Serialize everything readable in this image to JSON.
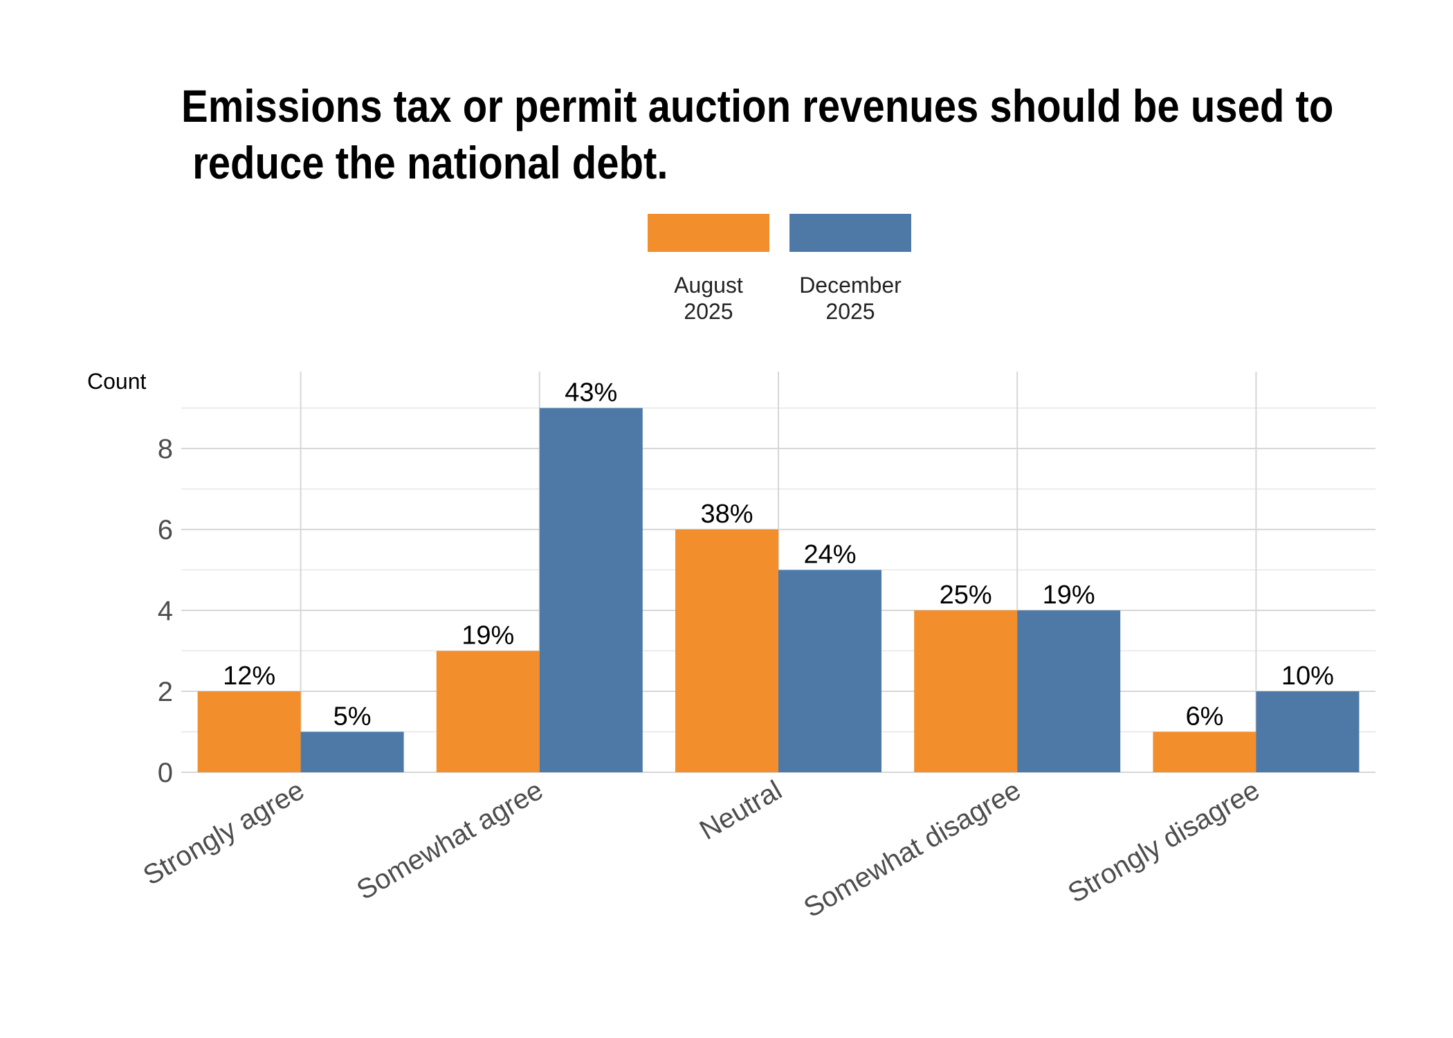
{
  "chart_data": {
    "type": "bar",
    "title": "Emissions tax or permit auction revenues should be used to\n reduce the national debt.",
    "ylabel": "Count",
    "xlabel": "",
    "categories": [
      "Strongly agree",
      "Somewhat agree",
      "Neutral",
      "Somewhat disagree",
      "Strongly disagree"
    ],
    "series": [
      {
        "name": "August 2025",
        "legend_lines": [
          "August",
          "2025"
        ],
        "color": "#F28E2B",
        "values": [
          2,
          3,
          6,
          4,
          1
        ],
        "labels": [
          "12%",
          "19%",
          "38%",
          "25%",
          "6%"
        ]
      },
      {
        "name": "December 2025",
        "legend_lines": [
          "December",
          "2025"
        ],
        "color": "#4E79A7",
        "values": [
          1,
          9,
          5,
          4,
          2
        ],
        "labels": [
          "5%",
          "43%",
          "24%",
          "19%",
          "10%"
        ]
      }
    ],
    "ylim": [
      0,
      9.9
    ],
    "yticks": [
      0,
      2,
      4,
      6,
      8
    ],
    "grid": true,
    "legend_position": "top"
  }
}
